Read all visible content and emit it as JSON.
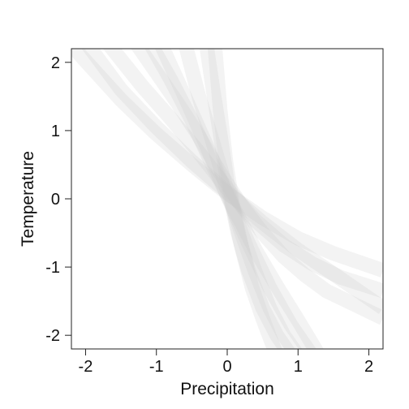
{
  "chart_data": {
    "type": "line",
    "title": "",
    "xlabel": "Precipitation",
    "ylabel": "Temperature",
    "xlim": [
      -2.2,
      2.2
    ],
    "ylim": [
      -2.2,
      2.2
    ],
    "xticks": [
      "-2",
      "-1",
      "0",
      "1",
      "2"
    ],
    "yticks": [
      "-2",
      "-1",
      "0",
      "1",
      "2"
    ],
    "grid": false,
    "legend": "none",
    "band_color": "#c8c8c8",
    "band_opacity": 0.22,
    "series": [
      {
        "x": [
          -2.2,
          -1.5,
          -1.0,
          -0.5,
          0.0,
          0.5,
          1.0,
          1.5,
          2.2
        ],
        "y": [
          2.25,
          1.45,
          0.95,
          0.5,
          0.08,
          -0.28,
          -0.58,
          -0.8,
          -1.05
        ]
      },
      {
        "x": [
          -1.7,
          -1.2,
          -0.8,
          -0.4,
          0.0,
          0.4,
          0.8,
          1.2,
          1.6,
          2.2
        ],
        "y": [
          2.3,
          1.65,
          1.18,
          0.68,
          0.15,
          -0.32,
          -0.68,
          -0.95,
          -1.15,
          -1.35
        ]
      },
      {
        "x": [
          -2.0,
          -1.5,
          -1.0,
          -0.5,
          0.0,
          0.5,
          1.0,
          1.5,
          2.2
        ],
        "y": [
          2.3,
          1.6,
          1.05,
          0.55,
          0.1,
          -0.35,
          -0.75,
          -1.1,
          -1.6
        ]
      },
      {
        "x": [
          -1.3,
          -1.0,
          -0.7,
          -0.4,
          -0.1,
          0.2,
          0.5,
          0.8,
          1.1,
          1.4,
          1.8,
          2.2
        ],
        "y": [
          2.3,
          1.85,
          1.4,
          0.92,
          0.38,
          -0.1,
          -0.5,
          -0.85,
          -1.12,
          -1.35,
          -1.55,
          -1.75
        ]
      },
      {
        "x": [
          -0.95,
          -0.6,
          -0.3,
          0.0,
          0.3,
          0.6,
          0.9,
          1.2
        ],
        "y": [
          2.3,
          1.5,
          0.8,
          0.05,
          -0.65,
          -1.3,
          -1.85,
          -2.3
        ]
      },
      {
        "x": [
          -0.6,
          -0.4,
          -0.2,
          0.0,
          0.2,
          0.4,
          0.6,
          0.8,
          1.0
        ],
        "y": [
          2.3,
          1.5,
          0.82,
          0.12,
          -0.5,
          -1.08,
          -1.6,
          -2.0,
          -2.3
        ]
      },
      {
        "x": [
          -0.3,
          -0.2,
          -0.1,
          0.0,
          0.15,
          0.3,
          0.5,
          0.7,
          0.9
        ],
        "y": [
          2.3,
          1.6,
          0.95,
          0.25,
          -0.5,
          -1.05,
          -1.6,
          -2.0,
          -2.3
        ]
      },
      {
        "x": [
          -0.18,
          -0.1,
          -0.02,
          0.08,
          0.2,
          0.35,
          0.5,
          0.7
        ],
        "y": [
          2.3,
          1.3,
          0.55,
          -0.1,
          -0.7,
          -1.3,
          -1.75,
          -2.3
        ]
      },
      {
        "x": [
          -1.1,
          -0.8,
          -0.5,
          -0.2,
          0.1,
          0.4,
          0.7,
          1.0,
          1.3
        ],
        "y": [
          2.3,
          1.75,
          1.15,
          0.48,
          -0.15,
          -0.75,
          -1.28,
          -1.78,
          -2.3
        ]
      }
    ]
  }
}
